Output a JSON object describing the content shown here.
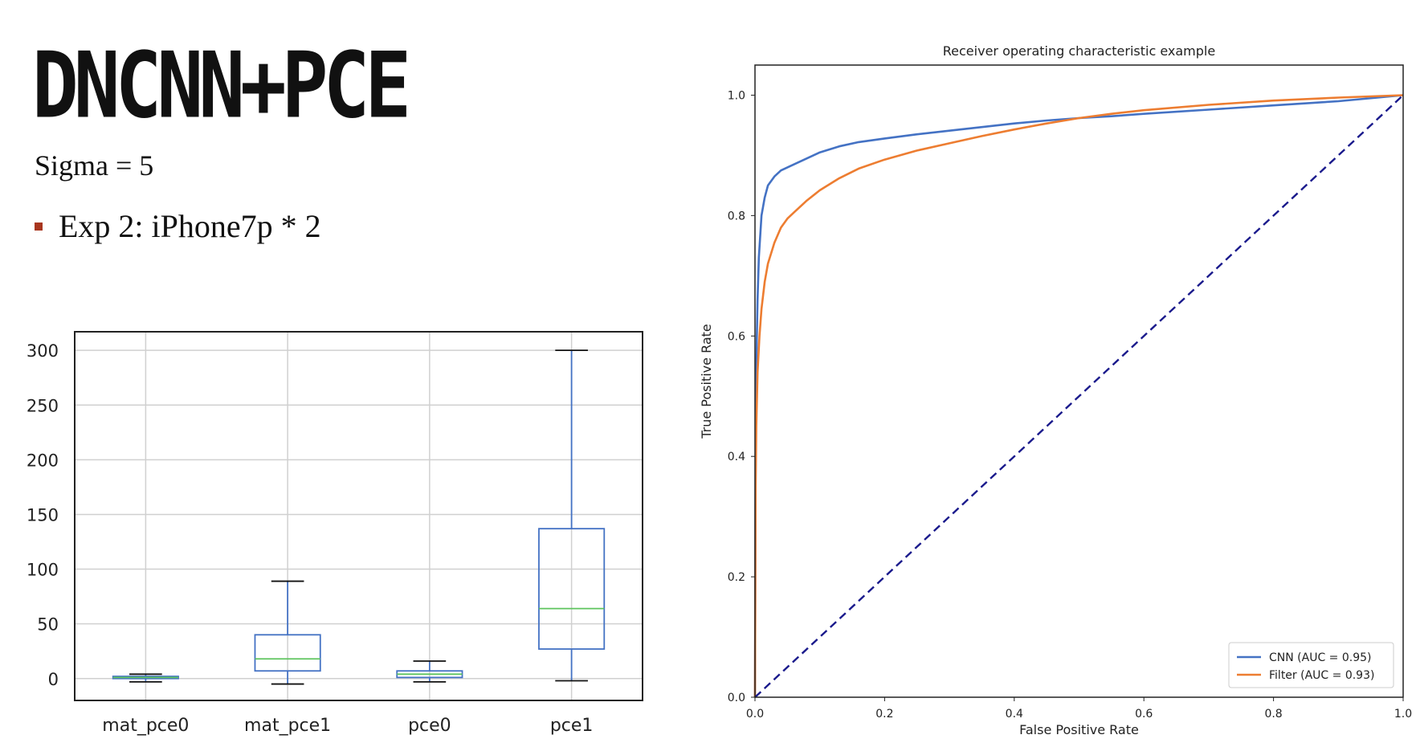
{
  "slide": {
    "title": "DNCNN+PCE",
    "subtitle": "Sigma = 5",
    "bullets": [
      "Exp 2: iPhone7p * 2"
    ]
  },
  "colors": {
    "bullet": "#a8361e",
    "box": "#4472c4",
    "median": "#5ec45e",
    "cnn": "#4472c4",
    "filter": "#ed7d31",
    "chance": "#1a1a8c"
  },
  "chart_data": [
    {
      "type": "box",
      "title": "",
      "categories": [
        "mat_pce0",
        "mat_pce1",
        "pce0",
        "pce1"
      ],
      "boxes": [
        {
          "whisker_low": -3,
          "q1": 0,
          "median": 1,
          "q3": 2,
          "whisker_high": 4
        },
        {
          "whisker_low": -5,
          "q1": 7,
          "median": 18,
          "q3": 40,
          "whisker_high": 89
        },
        {
          "whisker_low": -3,
          "q1": 1,
          "median": 4,
          "q3": 7,
          "whisker_high": 16
        },
        {
          "whisker_low": -2,
          "q1": 27,
          "median": 64,
          "q3": 137,
          "whisker_high": 300
        }
      ],
      "ylim": [
        -20,
        317
      ],
      "yticks": [
        0,
        50,
        100,
        150,
        200,
        250,
        300
      ],
      "grid": true
    },
    {
      "type": "line",
      "title": "Receiver operating characteristic example",
      "xlabel": "False Positive Rate",
      "ylabel": "True Positive Rate",
      "xlim": [
        0,
        1
      ],
      "ylim": [
        0,
        1.05
      ],
      "xticks": [
        "0.0",
        "0.2",
        "0.4",
        "0.6",
        "0.8",
        "1.0"
      ],
      "yticks": [
        "0.0",
        "0.2",
        "0.4",
        "0.6",
        "0.8",
        "1.0"
      ],
      "legend_position": "lower-right",
      "series": [
        {
          "name": "CNN (AUC = 0.95)",
          "x": [
            0,
            0.001,
            0.002,
            0.004,
            0.006,
            0.01,
            0.015,
            0.02,
            0.03,
            0.04,
            0.06,
            0.08,
            0.1,
            0.13,
            0.16,
            0.2,
            0.25,
            0.3,
            0.35,
            0.4,
            0.45,
            0.5,
            0.55,
            0.6,
            0.7,
            0.8,
            0.9,
            1.0
          ],
          "y": [
            0,
            0.4,
            0.55,
            0.66,
            0.73,
            0.8,
            0.83,
            0.85,
            0.865,
            0.875,
            0.885,
            0.895,
            0.905,
            0.915,
            0.922,
            0.928,
            0.935,
            0.941,
            0.947,
            0.953,
            0.958,
            0.962,
            0.965,
            0.969,
            0.976,
            0.983,
            0.99,
            1.0
          ]
        },
        {
          "name": "Filter (AUC = 0.93)",
          "x": [
            0,
            0.001,
            0.002,
            0.004,
            0.007,
            0.01,
            0.015,
            0.02,
            0.03,
            0.04,
            0.05,
            0.06,
            0.08,
            0.1,
            0.13,
            0.16,
            0.2,
            0.25,
            0.3,
            0.35,
            0.4,
            0.45,
            0.5,
            0.55,
            0.6,
            0.7,
            0.8,
            0.9,
            1.0
          ],
          "y": [
            0,
            0.35,
            0.45,
            0.54,
            0.6,
            0.645,
            0.69,
            0.72,
            0.755,
            0.78,
            0.795,
            0.805,
            0.825,
            0.842,
            0.862,
            0.878,
            0.893,
            0.908,
            0.92,
            0.932,
            0.943,
            0.953,
            0.962,
            0.969,
            0.975,
            0.984,
            0.991,
            0.996,
            1.0
          ]
        },
        {
          "name": "",
          "style": "dashed",
          "x": [
            0,
            1
          ],
          "y": [
            0,
            1
          ]
        }
      ]
    }
  ]
}
